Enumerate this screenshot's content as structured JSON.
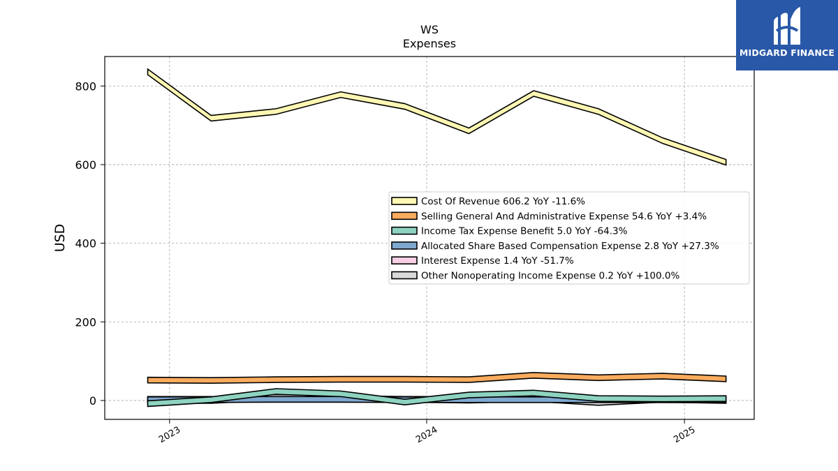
{
  "brand": {
    "name": "MIDGARD FINANCE",
    "color": "#2a58a8",
    "icon": "midgard-logo-icon"
  },
  "chart_data": {
    "type": "area",
    "title": "WS",
    "subtitle": "Expenses",
    "xlabel": "",
    "ylabel": "USD",
    "ylim": [
      -48,
      875
    ],
    "yticks": [
      0,
      200,
      400,
      600,
      800
    ],
    "xlim": [
      "2022-10-01",
      "2025-04-10"
    ],
    "xticks": [
      {
        "date": "2023-01-01",
        "label": "2023"
      },
      {
        "date": "2024-01-01",
        "label": "2024"
      },
      {
        "date": "2025-01-01",
        "label": "2025"
      }
    ],
    "grid": true,
    "legend_position": "center-right",
    "x": [
      "2022-12-01",
      "2023-03-01",
      "2023-06-01",
      "2023-09-01",
      "2023-12-01",
      "2024-03-01",
      "2024-06-01",
      "2024-09-01",
      "2024-12-01",
      "2025-03-01"
    ],
    "series": [
      {
        "name": "Cost Of Revenue",
        "legend": "Cost Of Revenue  606.2 YoY -11.6%",
        "color": "#fdf7b3",
        "values": [
          836,
          718,
          735,
          778,
          748,
          686,
          781,
          735,
          661,
          606
        ]
      },
      {
        "name": "Selling General And Administrative Expense",
        "legend": "Selling General And Administrative Expense  54.6 YoY +3.4%",
        "color": "#f9ab5e",
        "values": [
          52,
          51,
          53,
          54,
          54,
          53,
          64,
          58,
          62,
          55
        ]
      },
      {
        "name": "Income Tax Expense Benefit",
        "legend": "Income Tax Expense Benefit  5.0 YoY -64.3%",
        "color": "#8dd3c0",
        "values": [
          -8,
          2,
          23,
          17,
          -4,
          14,
          19,
          5,
          4,
          5
        ]
      },
      {
        "name": "Allocated Share Based Compensation Expense",
        "legend": "Allocated Share Based Compensation Expense  2.8 YoY +27.3%",
        "color": "#7fa8cf",
        "values": [
          2,
          2,
          3,
          3,
          2,
          2,
          2,
          2,
          2,
          3
        ]
      },
      {
        "name": "Interest Expense",
        "legend": "Interest Expense  1.4 YoY -51.7%",
        "color": "#f8cfe3",
        "values": [
          3,
          3,
          3,
          3,
          3,
          3,
          3,
          3,
          2,
          1
        ]
      },
      {
        "name": "Other Nonoperating Income Expense",
        "legend": "Other Nonoperating Income Expense  0.2 YoY +100.0%",
        "color": "#d9d9d9",
        "values": [
          0,
          0,
          8,
          5,
          3,
          1,
          5,
          -5,
          3,
          0
        ]
      }
    ]
  }
}
